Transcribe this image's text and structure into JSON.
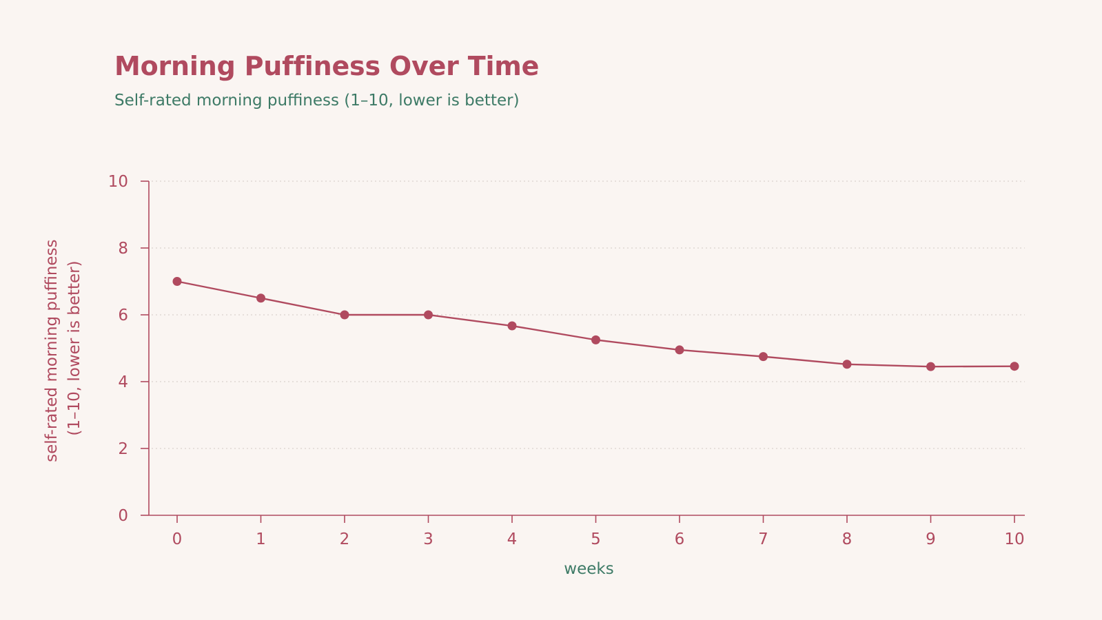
{
  "colors": {
    "background": "#faf5f2",
    "accent": "#b04a5f",
    "secondary": "#3d7a66",
    "grid": "#d9d2cd"
  },
  "chart_data": {
    "type": "line",
    "title": "Morning Puffiness Over Time",
    "subtitle": "Self-rated morning puffiness (1–10, lower is better)",
    "xlabel": "weeks",
    "ylabel": [
      "self-rated morning puffiness",
      "(1–10, lower is better)"
    ],
    "x": [
      0,
      1,
      2,
      3,
      4,
      5,
      6,
      7,
      8,
      9,
      10
    ],
    "y": [
      7.0,
      6.5,
      6.0,
      6.0,
      5.67,
      5.25,
      4.95,
      4.75,
      4.52,
      4.45,
      4.46
    ],
    "xlim": [
      0,
      10
    ],
    "ylim": [
      0,
      10
    ],
    "xticks": [
      "0",
      "1",
      "2",
      "3",
      "4",
      "5",
      "6",
      "7",
      "8",
      "9",
      "10"
    ],
    "yticks": [
      "0",
      "2",
      "4",
      "6",
      "8",
      "10"
    ],
    "grid": "horizontal dotted"
  }
}
